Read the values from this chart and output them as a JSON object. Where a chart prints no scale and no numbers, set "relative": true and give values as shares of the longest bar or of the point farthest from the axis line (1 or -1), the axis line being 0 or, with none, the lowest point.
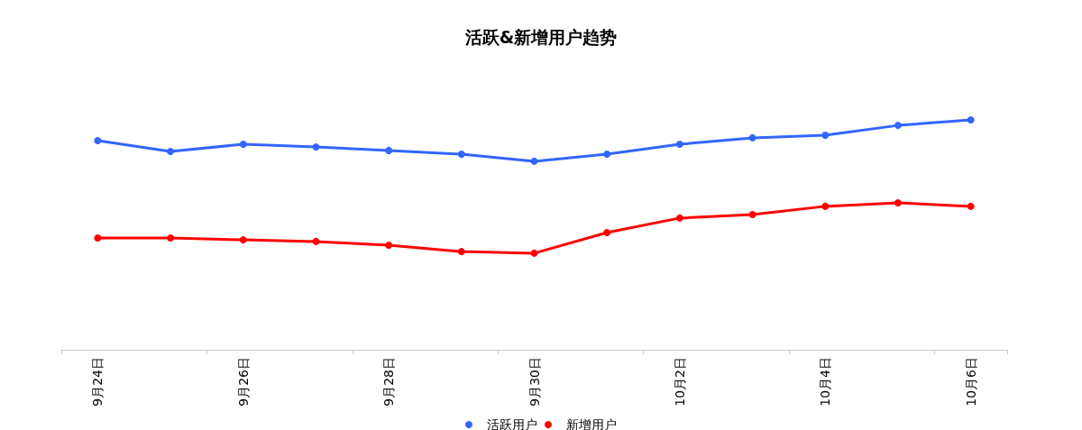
{
  "chart_data": {
    "type": "line",
    "title": "活跃&新增用户趋势",
    "relative": true,
    "categories": [
      "9月24日",
      null,
      "9月26日",
      null,
      "9月28日",
      null,
      "9月30日",
      null,
      "10月2日",
      null,
      "10月4日",
      null,
      "10月6日"
    ],
    "series": [
      {
        "name": "活跃用户",
        "color": "#3366ff",
        "values": [
          0.91,
          0.863,
          0.894,
          0.882,
          0.867,
          0.851,
          0.82,
          0.851,
          0.894,
          0.922,
          0.933,
          0.976,
          1
        ]
      },
      {
        "name": "新增用户",
        "color": "#ff0000",
        "values": [
          0.486,
          0.486,
          0.478,
          0.471,
          0.455,
          0.427,
          0.42,
          0.51,
          0.573,
          0.588,
          0.624,
          0.639,
          0.624
        ]
      }
    ],
    "legend": "bottom",
    "grid": false,
    "marker": "circle",
    "line_style": "solid"
  }
}
